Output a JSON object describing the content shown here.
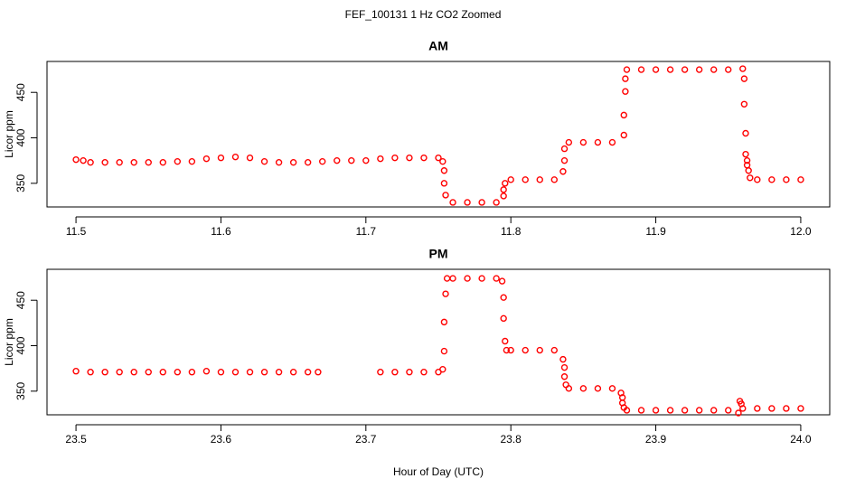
{
  "title": "FEF_100131  1 Hz CO2 Zoomed",
  "chart_data": [
    {
      "type": "scatter",
      "title": "AM",
      "ylabel": "Licor ppm",
      "xlim": [
        11.48,
        12.02
      ],
      "ylim": [
        324,
        484
      ],
      "xticks": [
        11.5,
        11.6,
        11.7,
        11.8,
        11.9,
        {
          "value": 12,
          "label": "12.0"
        }
      ],
      "yticks": [
        350,
        400,
        450
      ],
      "series": [
        {
          "color": "#ff0000",
          "x": [
            11.5,
            11.505,
            11.51,
            11.52,
            11.53,
            11.54,
            11.55,
            11.56,
            11.57,
            11.58,
            11.59,
            11.6,
            11.61,
            11.62,
            11.63,
            11.64,
            11.65,
            11.66,
            11.67,
            11.68,
            11.69,
            11.7,
            11.71,
            11.72,
            11.73,
            11.74,
            11.75,
            11.753,
            11.754,
            11.754,
            11.755,
            11.76,
            11.77,
            11.78,
            11.79,
            11.795,
            11.795,
            11.796,
            11.8,
            11.81,
            11.82,
            11.83,
            11.836,
            11.837,
            11.837,
            11.84,
            11.85,
            11.86,
            11.87,
            11.878,
            11.878,
            11.879,
            11.879,
            11.88,
            11.89,
            11.9,
            11.91,
            11.92,
            11.93,
            11.94,
            11.95,
            11.96,
            11.961,
            11.961,
            11.962,
            11.962,
            11.963,
            11.963,
            11.964,
            11.965,
            11.97,
            11.98,
            11.99,
            12.0
          ],
          "values": [
            376,
            375,
            373,
            373,
            373,
            373,
            373,
            373,
            374,
            374,
            377,
            378,
            379,
            378,
            374,
            373,
            373,
            373,
            374,
            375,
            375,
            375,
            377,
            378,
            378,
            378,
            378,
            374,
            364,
            350,
            337,
            329,
            329,
            329,
            329,
            336,
            343,
            350,
            354,
            354,
            354,
            354,
            363,
            375,
            388,
            395,
            395,
            395,
            395,
            403,
            425,
            451,
            465,
            475,
            475,
            475,
            475,
            475,
            475,
            475,
            475,
            476,
            465,
            437,
            405,
            382,
            375,
            370,
            364,
            356,
            354,
            354,
            354,
            354
          ]
        }
      ]
    },
    {
      "type": "scatter",
      "title": "PM",
      "ylabel": "Licor ppm",
      "xlabel": "Hour of Day (UTC)",
      "xlim": [
        23.48,
        24.02
      ],
      "ylim": [
        324,
        484
      ],
      "xticks": [
        23.5,
        23.6,
        23.7,
        23.8,
        23.9,
        {
          "value": 24,
          "label": "24.0"
        }
      ],
      "yticks": [
        350,
        400,
        450
      ],
      "series": [
        {
          "color": "#ff0000",
          "x": [
            23.5,
            23.51,
            23.52,
            23.53,
            23.54,
            23.55,
            23.56,
            23.57,
            23.58,
            23.59,
            23.6,
            23.61,
            23.62,
            23.63,
            23.64,
            23.65,
            23.66,
            23.667,
            23.71,
            23.72,
            23.73,
            23.74,
            23.75,
            23.753,
            23.754,
            23.754,
            23.755,
            23.756,
            23.76,
            23.77,
            23.78,
            23.79,
            23.794,
            23.795,
            23.795,
            23.796,
            23.797,
            23.8,
            23.81,
            23.82,
            23.83,
            23.836,
            23.837,
            23.837,
            23.838,
            23.84,
            23.85,
            23.86,
            23.87,
            23.876,
            23.877,
            23.877,
            23.878,
            23.88,
            23.89,
            23.9,
            23.91,
            23.92,
            23.93,
            23.94,
            23.95,
            23.957,
            23.958,
            23.959,
            23.96,
            23.97,
            23.98,
            23.99,
            24.0
          ],
          "values": [
            372,
            371,
            371,
            371,
            371,
            371,
            371,
            371,
            371,
            372,
            371,
            371,
            371,
            371,
            371,
            371,
            371,
            371,
            371,
            371,
            371,
            371,
            371,
            374,
            394,
            426,
            457,
            474,
            474,
            474,
            474,
            474,
            471,
            453,
            430,
            405,
            395,
            395,
            395,
            395,
            395,
            385,
            376,
            366,
            357,
            353,
            353,
            353,
            353,
            348,
            343,
            337,
            332,
            329,
            329,
            329,
            329,
            329,
            329,
            329,
            329,
            326,
            339,
            336,
            331,
            331,
            331,
            331,
            331
          ]
        }
      ]
    }
  ]
}
